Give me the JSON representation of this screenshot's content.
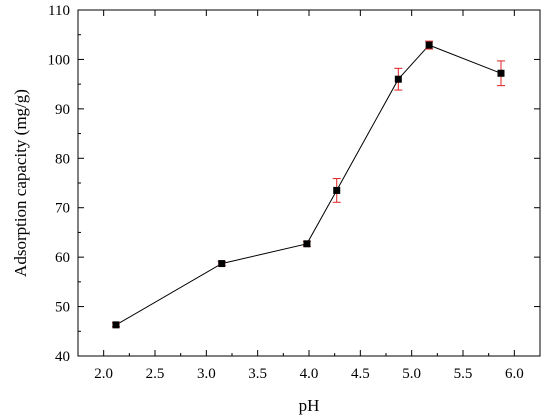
{
  "chart_data": {
    "type": "line",
    "xlabel": "pH",
    "ylabel": "Adsorption capacity (mg/g)",
    "xlim": [
      1.75,
      6.25
    ],
    "ylim": [
      40,
      110
    ],
    "x_ticks": [
      2.0,
      2.5,
      3.0,
      3.5,
      4.0,
      4.5,
      5.0,
      5.5,
      6.0
    ],
    "y_ticks": [
      40,
      50,
      60,
      70,
      80,
      90,
      100,
      110
    ],
    "x_tick_labels": [
      "2.0",
      "2.5",
      "3.0",
      "3.5",
      "4.0",
      "4.5",
      "5.0",
      "5.5",
      "6.0"
    ],
    "y_tick_labels": [
      "40",
      "50",
      "60",
      "70",
      "80",
      "90",
      "100",
      "110"
    ],
    "series": [
      {
        "x": [
          2.12,
          3.15,
          3.98,
          4.27,
          4.87,
          5.17,
          5.87
        ],
        "y": [
          46.3,
          58.7,
          62.7,
          73.5,
          96.0,
          102.9,
          97.2
        ],
        "error": [
          0.4,
          0.4,
          0.5,
          2.4,
          2.2,
          0.8,
          2.5
        ]
      }
    ],
    "grid": false,
    "legend": "none",
    "line_color": "#000000",
    "marker_color": "#000000",
    "error_bar_color": "#e02020"
  }
}
